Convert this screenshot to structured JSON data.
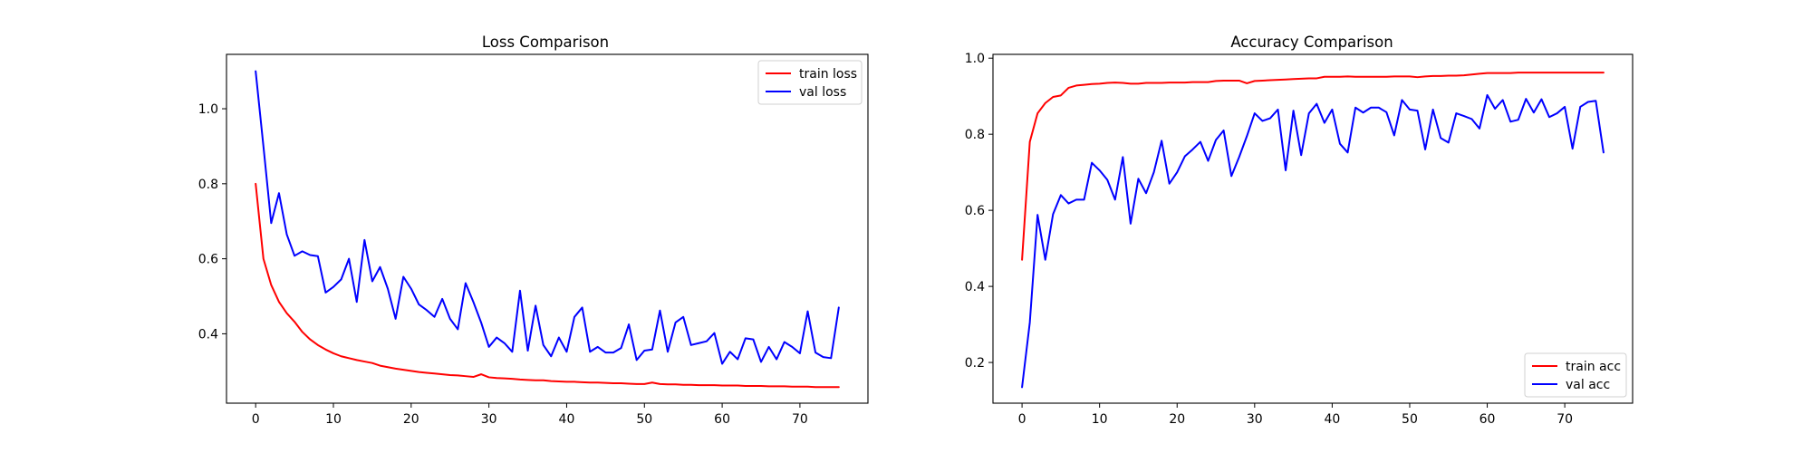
{
  "figure": {
    "background": "#ffffff"
  },
  "chart_data": [
    {
      "type": "line",
      "title": "Loss Comparison",
      "xlabel": "",
      "ylabel": "",
      "xlim": [
        -3.75,
        78.75
      ],
      "ylim": [
        0.215,
        1.145
      ],
      "xticks": [
        0,
        10,
        20,
        30,
        40,
        50,
        60,
        70
      ],
      "yticks": [
        0.4,
        0.6,
        0.8,
        1.0
      ],
      "ytick_labels": [
        "0.4",
        "0.6",
        "0.8",
        "1.0"
      ],
      "grid": false,
      "legend_position": "top-right",
      "x": [
        0,
        1,
        2,
        3,
        4,
        5,
        6,
        7,
        8,
        9,
        10,
        11,
        12,
        13,
        14,
        15,
        16,
        17,
        18,
        19,
        20,
        21,
        22,
        23,
        24,
        25,
        26,
        27,
        28,
        29,
        30,
        31,
        32,
        33,
        34,
        35,
        36,
        37,
        38,
        39,
        40,
        41,
        42,
        43,
        44,
        45,
        46,
        47,
        48,
        49,
        50,
        51,
        52,
        53,
        54,
        55,
        56,
        57,
        58,
        59,
        60,
        61,
        62,
        63,
        64,
        65,
        66,
        67,
        68,
        69,
        70,
        71,
        72,
        73,
        74,
        75
      ],
      "series": [
        {
          "name": "train loss",
          "color": "#ff0000",
          "values": [
            0.8,
            0.6,
            0.53,
            0.485,
            0.455,
            0.432,
            0.405,
            0.385,
            0.37,
            0.358,
            0.348,
            0.34,
            0.335,
            0.33,
            0.326,
            0.322,
            0.315,
            0.311,
            0.307,
            0.304,
            0.301,
            0.298,
            0.296,
            0.294,
            0.292,
            0.29,
            0.289,
            0.287,
            0.285,
            0.292,
            0.284,
            0.282,
            0.281,
            0.28,
            0.278,
            0.277,
            0.276,
            0.276,
            0.274,
            0.273,
            0.272,
            0.272,
            0.271,
            0.27,
            0.27,
            0.269,
            0.268,
            0.268,
            0.267,
            0.266,
            0.266,
            0.27,
            0.266,
            0.265,
            0.265,
            0.264,
            0.264,
            0.263,
            0.263,
            0.263,
            0.262,
            0.262,
            0.262,
            0.261,
            0.261,
            0.261,
            0.26,
            0.26,
            0.26,
            0.259,
            0.259,
            0.259,
            0.258,
            0.258,
            0.258,
            0.258
          ]
        },
        {
          "name": "val loss",
          "color": "#0000ff",
          "values": [
            1.1,
            0.9,
            0.695,
            0.775,
            0.665,
            0.608,
            0.62,
            0.61,
            0.607,
            0.51,
            0.525,
            0.545,
            0.6,
            0.485,
            0.65,
            0.54,
            0.578,
            0.52,
            0.44,
            0.552,
            0.52,
            0.478,
            0.463,
            0.445,
            0.493,
            0.44,
            0.412,
            0.535,
            0.485,
            0.43,
            0.365,
            0.39,
            0.375,
            0.352,
            0.515,
            0.355,
            0.475,
            0.37,
            0.34,
            0.39,
            0.352,
            0.445,
            0.47,
            0.352,
            0.365,
            0.35,
            0.35,
            0.362,
            0.425,
            0.33,
            0.355,
            0.358,
            0.462,
            0.352,
            0.43,
            0.445,
            0.37,
            0.375,
            0.38,
            0.402,
            0.32,
            0.352,
            0.332,
            0.388,
            0.385,
            0.325,
            0.365,
            0.332,
            0.378,
            0.365,
            0.348,
            0.46,
            0.35,
            0.338,
            0.335,
            0.47
          ]
        }
      ]
    },
    {
      "type": "line",
      "title": "Accuracy Comparison",
      "xlabel": "",
      "ylabel": "",
      "xlim": [
        -3.75,
        78.75
      ],
      "ylim": [
        0.093,
        1.01
      ],
      "xticks": [
        0,
        10,
        20,
        30,
        40,
        50,
        60,
        70
      ],
      "yticks": [
        0.2,
        0.4,
        0.6,
        0.8,
        1.0
      ],
      "ytick_labels": [
        "0.2",
        "0.4",
        "0.6",
        "0.8",
        "1.0"
      ],
      "grid": false,
      "legend_position": "bottom-right",
      "x": [
        0,
        1,
        2,
        3,
        4,
        5,
        6,
        7,
        8,
        9,
        10,
        11,
        12,
        13,
        14,
        15,
        16,
        17,
        18,
        19,
        20,
        21,
        22,
        23,
        24,
        25,
        26,
        27,
        28,
        29,
        30,
        31,
        32,
        33,
        34,
        35,
        36,
        37,
        38,
        39,
        40,
        41,
        42,
        43,
        44,
        45,
        46,
        47,
        48,
        49,
        50,
        51,
        52,
        53,
        54,
        55,
        56,
        57,
        58,
        59,
        60,
        61,
        62,
        63,
        64,
        65,
        66,
        67,
        68,
        69,
        70,
        71,
        72,
        73,
        74,
        75
      ],
      "series": [
        {
          "name": "train acc",
          "color": "#ff0000",
          "values": [
            0.47,
            0.78,
            0.855,
            0.882,
            0.898,
            0.902,
            0.922,
            0.928,
            0.93,
            0.932,
            0.933,
            0.935,
            0.936,
            0.935,
            0.933,
            0.933,
            0.935,
            0.935,
            0.935,
            0.936,
            0.936,
            0.936,
            0.937,
            0.937,
            0.937,
            0.94,
            0.941,
            0.941,
            0.941,
            0.934,
            0.94,
            0.941,
            0.942,
            0.943,
            0.944,
            0.945,
            0.946,
            0.947,
            0.947,
            0.951,
            0.951,
            0.951,
            0.952,
            0.951,
            0.951,
            0.951,
            0.951,
            0.951,
            0.952,
            0.952,
            0.952,
            0.95,
            0.952,
            0.953,
            0.953,
            0.954,
            0.954,
            0.955,
            0.957,
            0.959,
            0.961,
            0.961,
            0.961,
            0.961,
            0.962,
            0.962,
            0.962,
            0.962,
            0.962,
            0.962,
            0.962,
            0.962,
            0.962,
            0.962,
            0.962,
            0.962
          ]
        },
        {
          "name": "val acc",
          "color": "#0000ff",
          "values": [
            0.135,
            0.305,
            0.588,
            0.47,
            0.59,
            0.64,
            0.618,
            0.628,
            0.628,
            0.725,
            0.705,
            0.68,
            0.628,
            0.74,
            0.565,
            0.683,
            0.645,
            0.7,
            0.783,
            0.67,
            0.7,
            0.742,
            0.76,
            0.78,
            0.73,
            0.785,
            0.81,
            0.69,
            0.74,
            0.795,
            0.855,
            0.835,
            0.842,
            0.865,
            0.705,
            0.862,
            0.745,
            0.855,
            0.88,
            0.83,
            0.865,
            0.775,
            0.752,
            0.87,
            0.857,
            0.87,
            0.87,
            0.858,
            0.797,
            0.89,
            0.865,
            0.862,
            0.76,
            0.865,
            0.79,
            0.778,
            0.855,
            0.848,
            0.84,
            0.815,
            0.903,
            0.867,
            0.89,
            0.833,
            0.838,
            0.893,
            0.857,
            0.892,
            0.845,
            0.855,
            0.872,
            0.762,
            0.872,
            0.885,
            0.888,
            0.752
          ]
        }
      ]
    }
  ]
}
